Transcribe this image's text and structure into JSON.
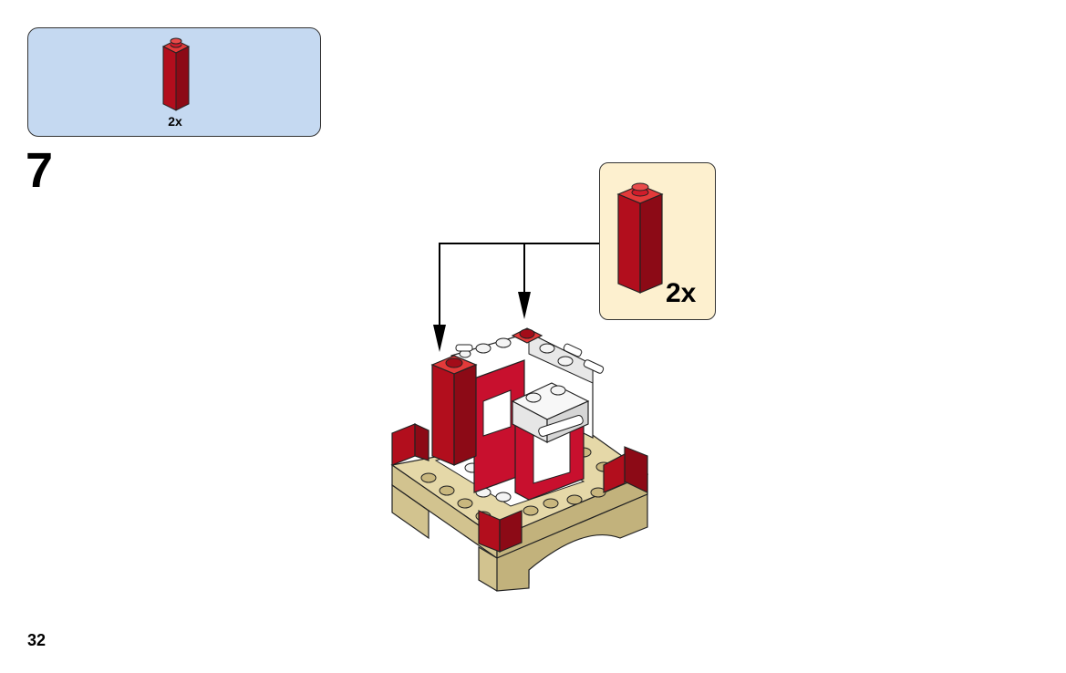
{
  "parts_list": {
    "quantity": "2x",
    "brick_color": "#c8102e"
  },
  "step": {
    "number": "7"
  },
  "callout": {
    "quantity": "2x"
  },
  "page": {
    "number": "32"
  },
  "colors": {
    "red": "#c8102e",
    "tan": "#d9cc9c",
    "white": "#ffffff",
    "parts_bg": "#c5d9f1",
    "callout_bg": "#fdf0cf"
  }
}
